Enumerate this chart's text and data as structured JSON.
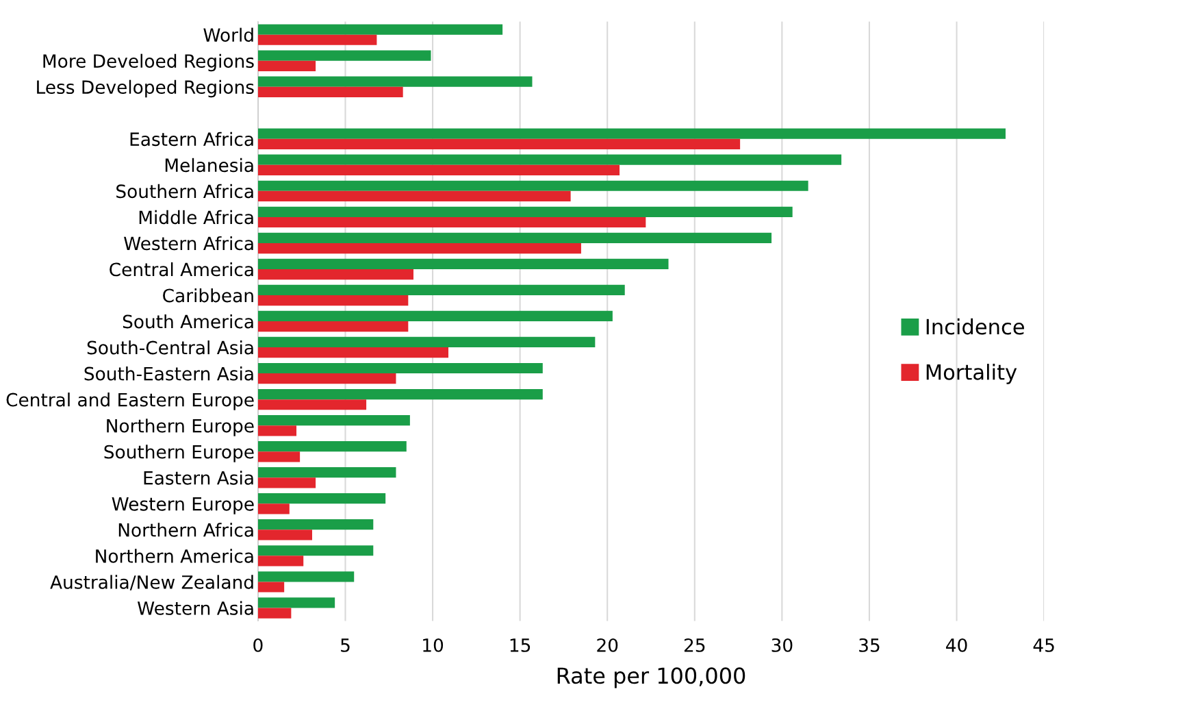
{
  "chart_data": {
    "type": "bar",
    "orientation": "horizontal",
    "xlabel": "Rate per 100,000",
    "categories": [
      "World",
      "More Develoed Regions",
      "Less Developed Regions",
      null,
      "Eastern Africa",
      "Melanesia",
      "Southern Africa",
      "Middle Africa",
      "Western Africa",
      "Central America",
      "Caribbean",
      "South America",
      "South-Central Asia",
      "South-Eastern Asia",
      "Central and Eastern Europe",
      "Northern Europe",
      "Southern Europe",
      "Eastern Asia",
      "Western Europe",
      "Northern Africa",
      "Northern America",
      "Australia/New Zealand",
      "Western Asia"
    ],
    "series": [
      {
        "name": "Incidence",
        "color": "#1a9e48",
        "values": [
          14.0,
          9.9,
          15.7,
          null,
          42.8,
          33.4,
          31.5,
          30.6,
          29.4,
          23.5,
          21.0,
          20.3,
          19.3,
          16.3,
          16.3,
          8.7,
          8.5,
          7.9,
          7.3,
          6.6,
          6.6,
          5.5,
          4.4
        ]
      },
      {
        "name": "Mortality",
        "color": "#e3262d",
        "values": [
          6.8,
          3.3,
          8.3,
          null,
          27.6,
          20.7,
          17.9,
          22.2,
          18.5,
          8.9,
          8.6,
          8.6,
          10.9,
          7.9,
          6.2,
          2.2,
          2.4,
          3.3,
          1.8,
          3.1,
          2.6,
          1.5,
          1.9
        ]
      }
    ],
    "xlim": [
      0,
      45
    ],
    "xticks": [
      0,
      5,
      10,
      15,
      20,
      25,
      30,
      35,
      40,
      45
    ],
    "grid": "x",
    "legend": "center right"
  }
}
